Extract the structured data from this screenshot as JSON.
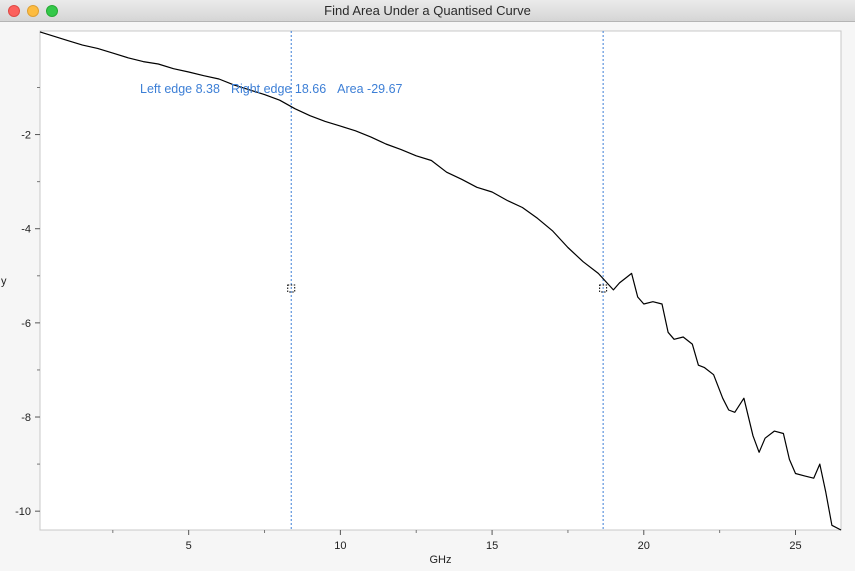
{
  "window": {
    "title": "Find Area Under a Quantised Curve"
  },
  "readout": {
    "left_edge": "Left edge 8.38",
    "right_edge": "Right edge 18.66",
    "area": "Area -29.67"
  },
  "colors": {
    "curve": "#000000",
    "edge_line": "#3d7fd6",
    "readout_text": "#3d7fd6",
    "plot_background": "#ffffff"
  },
  "chart_data": {
    "type": "line",
    "xlabel": "GHz",
    "ylabel": "y",
    "xlim": [
      0.1,
      26.5
    ],
    "ylim": [
      -10.4,
      0.2
    ],
    "x_ticks": [
      5,
      10,
      15,
      20,
      25
    ],
    "y_ticks": [
      -2,
      -4,
      -6,
      -8,
      -10
    ],
    "edges": {
      "left": 8.38,
      "right": 18.66
    },
    "series": [
      {
        "x": [
          0.1,
          0.5,
          1.0,
          1.5,
          2.0,
          2.5,
          3.0,
          3.5,
          4.0,
          4.5,
          5.0,
          5.5,
          6.0,
          6.5,
          7.0,
          7.5,
          8.0,
          8.5,
          9.0,
          9.5,
          10.0,
          10.5,
          11.0,
          11.5,
          12.0,
          12.5,
          13.0,
          13.5,
          14.0,
          14.5,
          15.0,
          15.5,
          16.0,
          16.5,
          17.0,
          17.5,
          18.0,
          18.5,
          19.0,
          19.2,
          19.4,
          19.6,
          19.8,
          20.0,
          20.3,
          20.6,
          20.8,
          21.0,
          21.3,
          21.6,
          21.8,
          22.0,
          22.3,
          22.6,
          22.8,
          23.0,
          23.3,
          23.6,
          23.8,
          24.0,
          24.3,
          24.6,
          24.8,
          25.0,
          25.3,
          25.6,
          25.8,
          26.0,
          26.2,
          26.5
        ],
        "y": [
          0.18,
          0.1,
          0.0,
          -0.1,
          -0.17,
          -0.27,
          -0.37,
          -0.45,
          -0.5,
          -0.6,
          -0.67,
          -0.75,
          -0.82,
          -0.95,
          -1.05,
          -1.15,
          -1.27,
          -1.45,
          -1.6,
          -1.72,
          -1.82,
          -1.92,
          -2.05,
          -2.2,
          -2.32,
          -2.45,
          -2.55,
          -2.8,
          -2.95,
          -3.12,
          -3.22,
          -3.4,
          -3.55,
          -3.78,
          -4.05,
          -4.4,
          -4.7,
          -4.95,
          -5.3,
          -5.15,
          -5.05,
          -4.95,
          -5.45,
          -5.6,
          -5.55,
          -5.6,
          -6.2,
          -6.35,
          -6.3,
          -6.45,
          -6.9,
          -6.95,
          -7.1,
          -7.6,
          -7.85,
          -7.9,
          -7.6,
          -8.4,
          -8.75,
          -8.45,
          -8.3,
          -8.35,
          -8.9,
          -9.2,
          -9.25,
          -9.3,
          -9.0,
          -9.6,
          -10.3,
          -10.4
        ]
      }
    ]
  }
}
